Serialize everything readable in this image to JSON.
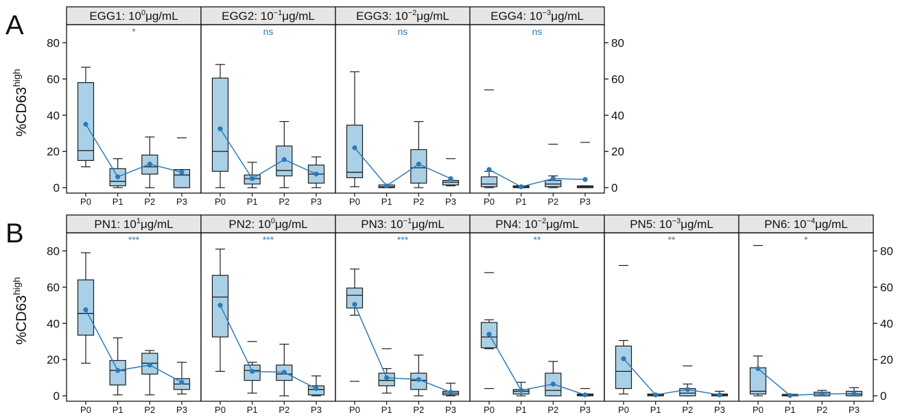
{
  "colors": {
    "box_fill": "#a9d0e6",
    "box_stroke": "#1a1a1a",
    "mean_line": "#2b7bbb",
    "sig_text": "#2b7bbb",
    "strip_fill": "#e6e6e6"
  },
  "figure": {
    "y_axis_title_main": "%CD63",
    "y_axis_title_sup": "high"
  },
  "panels": [
    {
      "label": "A"
    },
    {
      "label": "B"
    }
  ],
  "chart_data": [
    {
      "type": "box",
      "panel": "A",
      "ylim": [
        -3,
        90
      ],
      "yticks": [
        0,
        20,
        40,
        60,
        80
      ],
      "ytick_labels": [
        "0",
        "20",
        "40",
        "60",
        "80"
      ],
      "categories": [
        "P0",
        "P1",
        "P2",
        "P3"
      ],
      "facets": [
        {
          "name": "EGG1",
          "dose_base": "10",
          "dose_exp": "0",
          "unit": "μg/mL",
          "significance": "*",
          "boxes": [
            {
              "q1": 15,
              "median": 20.5,
              "q3": 58,
              "whisker_low": 11.5,
              "whisker_high": 66.5,
              "outliers": []
            },
            {
              "q1": 1,
              "median": 3.5,
              "q3": 10.5,
              "whisker_low": 0,
              "whisker_high": 16,
              "outliers": []
            },
            {
              "q1": 7.5,
              "median": 11.5,
              "q3": 18,
              "whisker_low": 0,
              "whisker_high": 28,
              "outliers": []
            },
            {
              "q1": 0,
              "median": 7,
              "q3": 10,
              "whisker_low": 0,
              "whisker_high": 10,
              "outliers": [
                27.5
              ]
            }
          ],
          "means": [
            35,
            6,
            13,
            8.5
          ]
        },
        {
          "name": "EGG2",
          "dose_base": "10",
          "dose_exp": "−1",
          "unit": "μg/mL",
          "significance": "ns",
          "boxes": [
            {
              "q1": 9,
              "median": 20,
              "q3": 60.5,
              "whisker_low": 0,
              "whisker_high": 68,
              "outliers": []
            },
            {
              "q1": 2,
              "median": 5,
              "q3": 7,
              "whisker_low": 0,
              "whisker_high": 14,
              "outliers": []
            },
            {
              "q1": 6.5,
              "median": 9.5,
              "q3": 23,
              "whisker_low": 0,
              "whisker_high": 36.5,
              "outliers": []
            },
            {
              "q1": 2.5,
              "median": 7.5,
              "q3": 12.5,
              "whisker_low": 0,
              "whisker_high": 17,
              "outliers": []
            }
          ],
          "means": [
            32.5,
            5,
            15.5,
            7.5
          ]
        },
        {
          "name": "EGG3",
          "dose_base": "10",
          "dose_exp": "−2",
          "unit": "μg/mL",
          "significance": "ns",
          "boxes": [
            {
              "q1": 5.5,
              "median": 8.5,
              "q3": 34.5,
              "whisker_low": 0.5,
              "whisker_high": 64,
              "outliers": []
            },
            {
              "q1": 0,
              "median": 0.5,
              "q3": 1.5,
              "whisker_low": 0,
              "whisker_high": 1.5,
              "outliers": []
            },
            {
              "q1": 2.5,
              "median": 11,
              "q3": 21,
              "whisker_low": 0,
              "whisker_high": 36.5,
              "outliers": []
            },
            {
              "q1": 1.5,
              "median": 3,
              "q3": 4,
              "whisker_low": 1,
              "whisker_high": 4,
              "outliers": [
                16
              ]
            }
          ],
          "means": [
            22,
            1,
            13,
            5
          ]
        },
        {
          "name": "EGG4",
          "dose_base": "10",
          "dose_exp": "−3",
          "unit": "μg/mL",
          "significance": "ns",
          "boxes": [
            {
              "q1": 0.5,
              "median": 2,
              "q3": 6,
              "whisker_low": 0,
              "whisker_high": 9,
              "outliers": [
                54
              ]
            },
            {
              "q1": 0,
              "median": 0.5,
              "q3": 1,
              "whisker_low": 0,
              "whisker_high": 1,
              "outliers": []
            },
            {
              "q1": 0.5,
              "median": 2,
              "q3": 4,
              "whisker_low": 0,
              "whisker_high": 6.5,
              "outliers": [
                24
              ]
            },
            {
              "q1": 0,
              "median": 0.5,
              "q3": 1,
              "whisker_low": 0,
              "whisker_high": 1,
              "outliers": [
                25
              ]
            }
          ],
          "means": [
            10,
            0.5,
            5,
            4.5
          ]
        }
      ]
    },
    {
      "type": "box",
      "panel": "B",
      "ylim": [
        -3,
        90
      ],
      "yticks": [
        0,
        20,
        40,
        60,
        80
      ],
      "ytick_labels": [
        "0",
        "20",
        "40",
        "60",
        "80"
      ],
      "categories": [
        "P0",
        "P1",
        "P2",
        "P3"
      ],
      "facets": [
        {
          "name": "PN1",
          "dose_base": "10",
          "dose_exp": "1",
          "unit": "μg/mL",
          "significance": "***",
          "boxes": [
            {
              "q1": 33.5,
              "median": 45.5,
              "q3": 64,
              "whisker_low": 18,
              "whisker_high": 79,
              "outliers": []
            },
            {
              "q1": 6,
              "median": 14,
              "q3": 19.5,
              "whisker_low": 0.5,
              "whisker_high": 32,
              "outliers": []
            },
            {
              "q1": 12,
              "median": 18,
              "q3": 23.5,
              "whisker_low": 0.5,
              "whisker_high": 25,
              "outliers": []
            },
            {
              "q1": 3.5,
              "median": 6.5,
              "q3": 9.5,
              "whisker_low": 1,
              "whisker_high": 18.5,
              "outliers": []
            }
          ],
          "means": [
            47.5,
            14,
            17,
            7.5
          ]
        },
        {
          "name": "PN2",
          "dose_base": "10",
          "dose_exp": "0",
          "unit": "μg/mL",
          "significance": "***",
          "boxes": [
            {
              "q1": 32.5,
              "median": 54.5,
              "q3": 66.5,
              "whisker_low": 13.5,
              "whisker_high": 81,
              "outliers": []
            },
            {
              "q1": 8.5,
              "median": 14,
              "q3": 17,
              "whisker_low": 1.5,
              "whisker_high": 18.5,
              "outliers": [
                30
              ]
            },
            {
              "q1": 8.5,
              "median": 12,
              "q3": 17,
              "whisker_low": 0,
              "whisker_high": 28.5,
              "outliers": []
            },
            {
              "q1": 0.5,
              "median": 3.5,
              "q3": 5.5,
              "whisker_low": 0,
              "whisker_high": 11,
              "outliers": []
            }
          ],
          "means": [
            50,
            13.5,
            13,
            4
          ]
        },
        {
          "name": "PN3",
          "dose_base": "10",
          "dose_exp": "−1",
          "unit": "μg/mL",
          "significance": "***",
          "boxes": [
            {
              "q1": 48.5,
              "median": 55.5,
              "q3": 59.5,
              "whisker_low": 44.5,
              "whisker_high": 70,
              "outliers": [
                8
              ]
            },
            {
              "q1": 5.5,
              "median": 8.5,
              "q3": 12.5,
              "whisker_low": 1.5,
              "whisker_high": 15,
              "outliers": [
                26
              ]
            },
            {
              "q1": 3.5,
              "median": 8.5,
              "q3": 12.5,
              "whisker_low": 0,
              "whisker_high": 22.5,
              "outliers": []
            },
            {
              "q1": 0.5,
              "median": 1.5,
              "q3": 2.5,
              "whisker_low": 0,
              "whisker_high": 7,
              "outliers": []
            }
          ],
          "means": [
            50.5,
            10,
            9,
            2
          ]
        },
        {
          "name": "PN4",
          "dose_base": "10",
          "dose_exp": "−2",
          "unit": "μg/mL",
          "significance": "**",
          "boxes": [
            {
              "q1": 26.5,
              "median": 32.5,
              "q3": 40.5,
              "whisker_low": 26,
              "whisker_high": 42,
              "outliers": [
                68,
                4
              ]
            },
            {
              "q1": 1,
              "median": 2.5,
              "q3": 3.5,
              "whisker_low": 0,
              "whisker_high": 7.5,
              "outliers": []
            },
            {
              "q1": 0,
              "median": 3,
              "q3": 12.5,
              "whisker_low": 0,
              "whisker_high": 19,
              "outliers": []
            },
            {
              "q1": 0,
              "median": 0.5,
              "q3": 1,
              "whisker_low": 0,
              "whisker_high": 1,
              "outliers": [
                4
              ]
            }
          ],
          "means": [
            34,
            3,
            6.5,
            0.5
          ]
        },
        {
          "name": "PN5",
          "dose_base": "10",
          "dose_exp": "−3",
          "unit": "μg/mL",
          "significance": "**",
          "boxes": [
            {
              "q1": 4,
              "median": 13.5,
              "q3": 27.5,
              "whisker_low": 1,
              "whisker_high": 30.5,
              "outliers": [
                72
              ]
            },
            {
              "q1": 0,
              "median": 0.5,
              "q3": 1,
              "whisker_low": 0,
              "whisker_high": 1,
              "outliers": []
            },
            {
              "q1": 0,
              "median": 1.5,
              "q3": 4,
              "whisker_low": 0,
              "whisker_high": 6.5,
              "outliers": [
                16.5
              ]
            },
            {
              "q1": 0,
              "median": 0.5,
              "q3": 1,
              "whisker_low": 0,
              "whisker_high": 2.5,
              "outliers": []
            }
          ],
          "means": [
            20.5,
            0.5,
            3.5,
            0.5
          ]
        },
        {
          "name": "PN6",
          "dose_base": "10",
          "dose_exp": "−4",
          "unit": "μg/mL",
          "significance": "*",
          "boxes": [
            {
              "q1": 1,
              "median": 2.5,
              "q3": 15.5,
              "whisker_low": 0,
              "whisker_high": 22,
              "outliers": [
                83
              ]
            },
            {
              "q1": 0,
              "median": 0.3,
              "q3": 0.8,
              "whisker_low": 0,
              "whisker_high": 0.8,
              "outliers": []
            },
            {
              "q1": 0,
              "median": 1,
              "q3": 2,
              "whisker_low": 0,
              "whisker_high": 3,
              "outliers": []
            },
            {
              "q1": 0,
              "median": 1,
              "q3": 2.5,
              "whisker_low": 0,
              "whisker_high": 4.5,
              "outliers": []
            }
          ],
          "means": [
            15,
            0.2,
            1,
            1.2
          ]
        }
      ]
    }
  ]
}
